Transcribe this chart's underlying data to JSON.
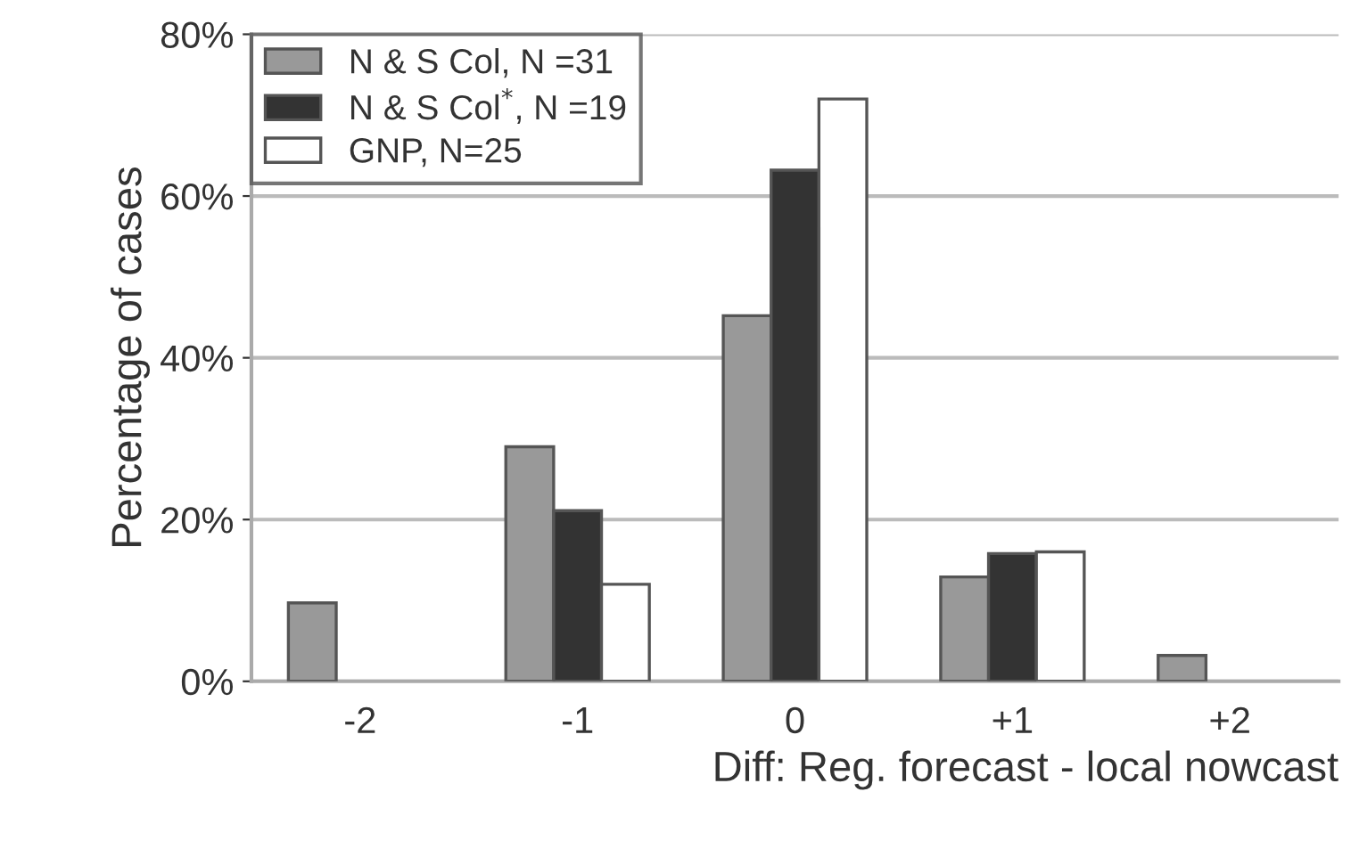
{
  "chart_data": {
    "type": "bar",
    "xlabel": "Diff: Reg. forecast - local nowcast",
    "ylabel": "Percentage of cases",
    "categories": [
      "-2",
      "-1",
      "0",
      "+1",
      "+2"
    ],
    "series": [
      {
        "name": "N & S Col, N =31",
        "color": "#999999",
        "values": [
          9.7,
          29.0,
          45.2,
          12.9,
          3.2
        ]
      },
      {
        "name": "N & S Col$^{*}$, N =19",
        "color": "#333333",
        "values": [
          null,
          21.1,
          63.2,
          15.8,
          null
        ]
      },
      {
        "name": "GNP, N=25",
        "color": "#ffffff",
        "values": [
          null,
          12.0,
          72.0,
          16.0,
          null
        ]
      }
    ],
    "ylim": [
      0,
      80
    ],
    "yticks": [
      {
        "value": 0,
        "label": "0%"
      },
      {
        "value": 20,
        "label": "20%"
      },
      {
        "value": 40,
        "label": "40%"
      },
      {
        "value": 60,
        "label": "60%"
      },
      {
        "value": 80,
        "label": "80%"
      }
    ],
    "grid": "y",
    "legend": "top left"
  }
}
